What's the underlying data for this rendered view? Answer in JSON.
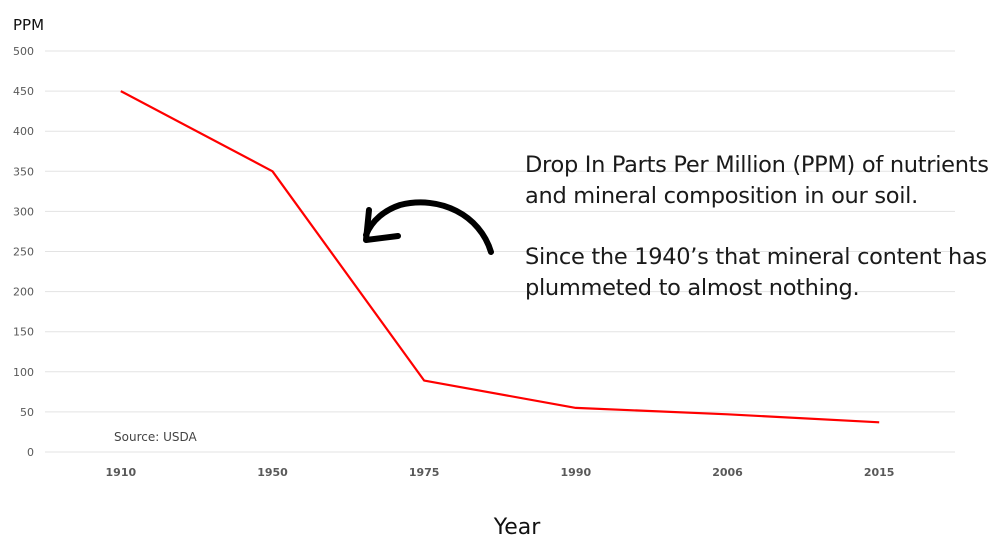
{
  "chart_data": {
    "type": "line",
    "title": "",
    "xlabel": "Year",
    "ylabel": "PPM",
    "categories": [
      "1910",
      "1950",
      "1975",
      "1990",
      "2006",
      "2015"
    ],
    "series": [
      {
        "name": "PPM",
        "color": "#ff0000",
        "values": [
          450,
          350,
          89,
          55,
          47,
          37
        ]
      }
    ],
    "ylim": [
      0,
      500
    ],
    "yticks": [
      0,
      50,
      100,
      150,
      200,
      250,
      300,
      350,
      400,
      450,
      500
    ],
    "grid": true,
    "legend": "none",
    "annotations": [
      "Drop In Parts Per Million (PPM) of nutrients and mineral composition in our soil.",
      "Since the 1940’s that mineral content has plummeted to almost nothing.",
      "Source: USDA"
    ]
  },
  "labels": {
    "ylabel": "PPM",
    "xlabel": "Year",
    "source": "Source: USDA"
  },
  "annotation": {
    "para1": "Drop In Parts Per Million (PPM) of nutrients and mineral composition in our soil.",
    "para2": "Since the 1940’s that mineral content has plummeted to almost nothing."
  },
  "colors": {
    "line": "#ff0000",
    "grid": "#e3e3e3",
    "arrow": "#000000"
  }
}
